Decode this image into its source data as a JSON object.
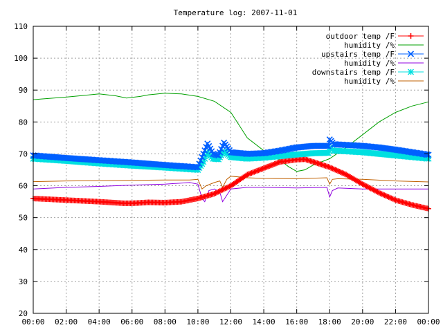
{
  "chart_data": {
    "type": "line",
    "title": "Temperature log: 2007-11-01",
    "xlabel": "",
    "ylabel": "",
    "xlim": [
      "00:00",
      "24:00"
    ],
    "ylim": [
      20,
      110
    ],
    "x_ticks": [
      "00:00",
      "02:00",
      "04:00",
      "06:00",
      "08:00",
      "10:00",
      "12:00",
      "14:00",
      "16:00",
      "18:00",
      "20:00",
      "22:00",
      "00:00"
    ],
    "y_ticks": [
      20,
      30,
      40,
      50,
      60,
      70,
      80,
      90,
      100,
      110
    ],
    "grid": true,
    "legend_position": "top-right",
    "series": [
      {
        "name": "outdoor temp /F",
        "color": "#ff0000",
        "marker": "plus",
        "points": [
          [
            "00:00",
            56
          ],
          [
            "02:00",
            55.5
          ],
          [
            "04:00",
            55
          ],
          [
            "05:30",
            54.5
          ],
          [
            "06:00",
            54.5
          ],
          [
            "07:00",
            54.8
          ],
          [
            "08:00",
            54.7
          ],
          [
            "09:00",
            55
          ],
          [
            "10:00",
            56
          ],
          [
            "11:00",
            57.5
          ],
          [
            "12:00",
            60
          ],
          [
            "13:00",
            63.5
          ],
          [
            "14:00",
            65.5
          ],
          [
            "15:00",
            67.5
          ],
          [
            "16:00",
            68.2
          ],
          [
            "16:30",
            68.3
          ],
          [
            "17:00",
            67.5
          ],
          [
            "18:00",
            65.8
          ],
          [
            "19:00",
            63.5
          ],
          [
            "20:00",
            60.5
          ],
          [
            "21:00",
            57.8
          ],
          [
            "22:00",
            55.5
          ],
          [
            "23:00",
            54
          ],
          [
            "24:00",
            52.8
          ]
        ]
      },
      {
        "name": "humidity /%",
        "color": "#00a000",
        "marker": "none",
        "points": [
          [
            "00:00",
            87
          ],
          [
            "00:30",
            87.2
          ],
          [
            "02:00",
            87.8
          ],
          [
            "03:00",
            88.3
          ],
          [
            "04:00",
            88.8
          ],
          [
            "05:00",
            88.2
          ],
          [
            "05:40",
            87.5
          ],
          [
            "06:30",
            88
          ],
          [
            "07:00",
            88.5
          ],
          [
            "08:00",
            89
          ],
          [
            "09:00",
            88.8
          ],
          [
            "10:00",
            88
          ],
          [
            "11:00",
            86.5
          ],
          [
            "12:00",
            83
          ],
          [
            "12:30",
            79
          ],
          [
            "13:00",
            75
          ],
          [
            "14:00",
            71
          ],
          [
            "15:00",
            68
          ],
          [
            "15:30",
            66
          ],
          [
            "16:00",
            64.5
          ],
          [
            "16:30",
            65
          ],
          [
            "17:00",
            66.5
          ],
          [
            "18:00",
            68.5
          ],
          [
            "19:00",
            72
          ],
          [
            "20:00",
            76
          ],
          [
            "21:00",
            80
          ],
          [
            "22:00",
            83
          ],
          [
            "23:00",
            85
          ],
          [
            "24:00",
            86.3
          ]
        ]
      },
      {
        "name": "upstairs temp /F",
        "color": "#0060ff",
        "marker": "cross",
        "points": [
          [
            "00:00",
            69.5
          ],
          [
            "02:00",
            68.7
          ],
          [
            "04:00",
            68
          ],
          [
            "06:00",
            67.3
          ],
          [
            "08:00",
            66.5
          ],
          [
            "10:00",
            65.8
          ],
          [
            "10:20",
            70
          ],
          [
            "10:35",
            73.2
          ],
          [
            "10:55",
            70
          ],
          [
            "11:15",
            69.5
          ],
          [
            "11:35",
            73.5
          ],
          [
            "12:00",
            70.5
          ],
          [
            "13:00",
            70
          ],
          [
            "14:00",
            70.2
          ],
          [
            "15:00",
            71
          ],
          [
            "16:00",
            72
          ],
          [
            "17:00",
            72.5
          ],
          [
            "17:55",
            72.5
          ],
          [
            "18:00",
            74.5
          ],
          [
            "18:15",
            73
          ],
          [
            "19:00",
            72.8
          ],
          [
            "20:00",
            72.5
          ],
          [
            "21:00",
            72
          ],
          [
            "22:00",
            71.3
          ],
          [
            "23:00",
            70.5
          ],
          [
            "24:00",
            69.7
          ]
        ]
      },
      {
        "name": "humidity /%",
        "color": "#9000e0",
        "marker": "none",
        "points": [
          [
            "00:00",
            59
          ],
          [
            "02:00",
            59.5
          ],
          [
            "04:00",
            59.8
          ],
          [
            "06:00",
            60.2
          ],
          [
            "08:00",
            60.5
          ],
          [
            "09:30",
            61
          ],
          [
            "10:00",
            60.5
          ],
          [
            "10:15",
            56
          ],
          [
            "10:25",
            55
          ],
          [
            "10:40",
            58.5
          ],
          [
            "11:00",
            59
          ],
          [
            "11:20",
            58
          ],
          [
            "11:30",
            55
          ],
          [
            "11:45",
            57
          ],
          [
            "12:00",
            59
          ],
          [
            "13:00",
            59.5
          ],
          [
            "14:00",
            59.5
          ],
          [
            "16:00",
            59.3
          ],
          [
            "17:50",
            59.5
          ],
          [
            "18:00",
            56.5
          ],
          [
            "18:10",
            58.5
          ],
          [
            "18:30",
            59.3
          ],
          [
            "20:00",
            59
          ],
          [
            "22:00",
            59
          ],
          [
            "24:00",
            59
          ]
        ]
      },
      {
        "name": "downstairs temp /F",
        "color": "#00e0e0",
        "marker": "star",
        "points": [
          [
            "00:00",
            68.5
          ],
          [
            "02:00",
            67.8
          ],
          [
            "04:00",
            67
          ],
          [
            "06:00",
            66.3
          ],
          [
            "08:00",
            65.7
          ],
          [
            "10:00",
            65
          ],
          [
            "10:20",
            67.5
          ],
          [
            "10:35",
            70.5
          ],
          [
            "10:55",
            68.5
          ],
          [
            "11:15",
            68.3
          ],
          [
            "11:35",
            70.8
          ],
          [
            "12:00",
            69
          ],
          [
            "13:00",
            68.5
          ],
          [
            "14:00",
            68.8
          ],
          [
            "15:00",
            69.3
          ],
          [
            "16:00",
            69.8
          ],
          [
            "17:00",
            70.2
          ],
          [
            "17:55",
            70.3
          ],
          [
            "18:00",
            72
          ],
          [
            "18:15",
            71
          ],
          [
            "19:00",
            70.8
          ],
          [
            "20:00",
            70.5
          ],
          [
            "21:00",
            70
          ],
          [
            "22:00",
            69.5
          ],
          [
            "23:00",
            69
          ],
          [
            "24:00",
            68.5
          ]
        ]
      },
      {
        "name": "humidity /%",
        "color": "#c06000",
        "marker": "none",
        "points": [
          [
            "00:00",
            61.3
          ],
          [
            "02:00",
            61.5
          ],
          [
            "04:00",
            61.6
          ],
          [
            "06:00",
            61.7
          ],
          [
            "08:00",
            61.8
          ],
          [
            "09:30",
            61.8
          ],
          [
            "10:00",
            62
          ],
          [
            "10:15",
            59
          ],
          [
            "10:30",
            60
          ],
          [
            "11:00",
            61
          ],
          [
            "11:20",
            61.5
          ],
          [
            "11:30",
            59.5
          ],
          [
            "11:45",
            62
          ],
          [
            "12:00",
            63
          ],
          [
            "13:00",
            62.5
          ],
          [
            "14:00",
            62.3
          ],
          [
            "16:00",
            62.2
          ],
          [
            "17:50",
            62.5
          ],
          [
            "18:00",
            60.5
          ],
          [
            "18:10",
            62
          ],
          [
            "18:30",
            62.2
          ],
          [
            "20:00",
            62
          ],
          [
            "22:00",
            61.5
          ],
          [
            "24:00",
            61.2
          ]
        ]
      }
    ]
  }
}
